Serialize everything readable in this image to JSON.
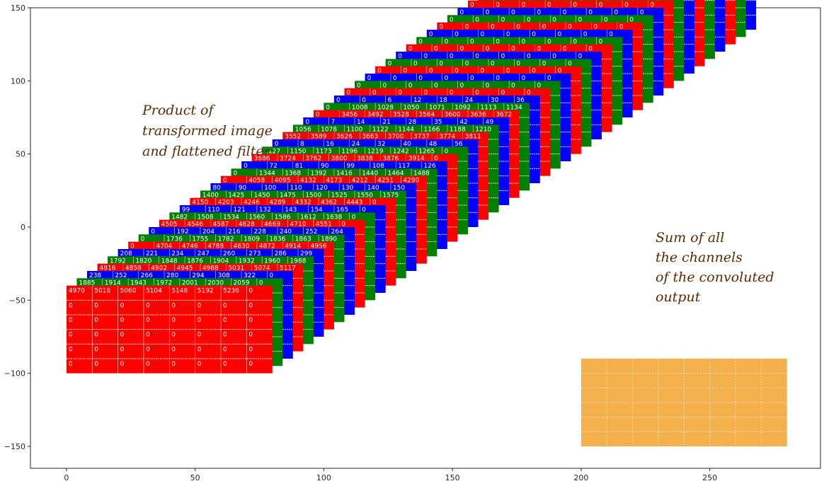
{
  "chart_data": {
    "type": "diagram",
    "xlim": [
      -14,
      293
    ],
    "ylim": [
      -165,
      150
    ],
    "xticks": [
      0,
      50,
      100,
      150,
      200,
      250
    ],
    "yticks": [
      -150,
      -100,
      -50,
      0,
      50,
      100,
      150
    ],
    "grid": false,
    "annotations": [
      {
        "name": "product-annotation",
        "lines": [
          "Product of",
          "transformed image",
          "and flattened filter"
        ]
      },
      {
        "name": "sum-annotation",
        "lines": [
          "Sum of all",
          "the channels",
          "of the convoluted",
          "output"
        ]
      }
    ],
    "stack": {
      "count": 48,
      "colors": [
        "#ff0000",
        "#008000",
        "#0000ff"
      ],
      "front_origin": [
        0,
        -100
      ],
      "step": [
        4,
        5
      ],
      "width": 80,
      "height": 60,
      "rows": 6,
      "cols": 8,
      "front_cells": [
        "0",
        "0",
        "0",
        "0",
        "0",
        "0",
        "0",
        "0"
      ],
      "top_row_values": [
        [
          "4970",
          "5016",
          "5060",
          "5104",
          "5148",
          "5192",
          "5236",
          "0"
        ],
        [
          "1885",
          "1914",
          "1943",
          "1972",
          "2001",
          "2030",
          "2059",
          "0"
        ],
        [
          "238",
          "252",
          "266",
          "280",
          "294",
          "308",
          "322",
          "0"
        ],
        [
          "4816",
          "4858",
          "4902",
          "4945",
          "4988",
          "5031",
          "5074",
          "5117"
        ],
        [
          "1792",
          "1820",
          "1848",
          "1876",
          "1904",
          "1932",
          "1960",
          "1988"
        ],
        [
          "208",
          "221",
          "234",
          "247",
          "260",
          "273",
          "286",
          "299"
        ],
        [
          "0",
          "4704",
          "4746",
          "4788",
          "4830",
          "4872",
          "4914",
          "4956"
        ],
        [
          "0",
          "1736",
          "1755",
          "1782",
          "1809",
          "1836",
          "1863",
          "1890"
        ],
        [
          "0",
          "192",
          "204",
          "216",
          "228",
          "240",
          "252",
          "264"
        ],
        [
          "4505",
          "4546",
          "4587",
          "4628",
          "4669",
          "4710",
          "4551",
          "0"
        ],
        [
          "1482",
          "1508",
          "1534",
          "1560",
          "1586",
          "1612",
          "1638",
          "0"
        ],
        [
          "99",
          "110",
          "121",
          "132",
          "143",
          "154",
          "165",
          "0"
        ],
        [
          "4150",
          "4203",
          "4246",
          "4289",
          "4332",
          "4362",
          "4443",
          "0"
        ],
        [
          "1400",
          "1425",
          "1450",
          "1475",
          "1500",
          "1525",
          "1550",
          "1575"
        ],
        [
          "80",
          "90",
          "100",
          "110",
          "120",
          "130",
          "140",
          "150"
        ],
        [
          "0",
          "4058",
          "4095",
          "4132",
          "4173",
          "4212",
          "4251",
          "4290"
        ],
        [
          "0",
          "1344",
          "1368",
          "1392",
          "1416",
          "1440",
          "1464",
          "1488"
        ],
        [
          "0",
          "72",
          "81",
          "90",
          "99",
          "108",
          "117",
          "126"
        ],
        [
          "3686",
          "3724",
          "3762",
          "3800",
          "3838",
          "3876",
          "3914",
          "0"
        ],
        [
          "1127",
          "1150",
          "1173",
          "1196",
          "1219",
          "1242",
          "1265",
          "0"
        ],
        [
          "0",
          "8",
          "16",
          "24",
          "32",
          "40",
          "48",
          "56"
        ],
        [
          "3552",
          "3589",
          "3626",
          "3663",
          "3700",
          "3737",
          "3774",
          "3811"
        ],
        [
          "1056",
          "1078",
          "1100",
          "1122",
          "1144",
          "1166",
          "1188",
          "1210"
        ],
        [
          "0",
          "7",
          "14",
          "21",
          "28",
          "35",
          "42",
          "49"
        ],
        [
          "0",
          "3456",
          "3492",
          "3528",
          "3564",
          "3600",
          "3636",
          "3672"
        ],
        [
          "0",
          "1008",
          "1028",
          "1050",
          "1071",
          "1092",
          "1113",
          "1134"
        ],
        [
          "0",
          "0",
          "6",
          "12",
          "18",
          "24",
          "30",
          "36"
        ],
        [
          "0",
          "0",
          "0",
          "0",
          "0",
          "0",
          "0",
          "0"
        ],
        [
          "0",
          "0",
          "0",
          "0",
          "0",
          "0",
          "0",
          "0"
        ],
        [
          "0",
          "0",
          "0",
          "0",
          "0",
          "0",
          "0",
          "0"
        ],
        [
          "0",
          "0",
          "0",
          "0",
          "0",
          "0",
          "0",
          "0"
        ],
        [
          "0",
          "0",
          "0",
          "0",
          "0",
          "0",
          "0",
          "0"
        ],
        [
          "0",
          "0",
          "0",
          "0",
          "0",
          "0",
          "0",
          "0"
        ],
        [
          "0",
          "0",
          "0",
          "0",
          "0",
          "0",
          "0",
          "0"
        ],
        [
          "0",
          "0",
          "0",
          "0",
          "0",
          "0",
          "0",
          "0"
        ],
        [
          "0",
          "0",
          "0",
          "0",
          "0",
          "0",
          "0",
          "0"
        ],
        [
          "0",
          "0",
          "0",
          "0",
          "0",
          "0",
          "0",
          "0"
        ],
        [
          "0",
          "0",
          "0",
          "0",
          "0",
          "0",
          "0",
          "0"
        ],
        [
          "0",
          "0",
          "0",
          "0",
          "0",
          "0",
          "0",
          "0"
        ],
        [
          "0",
          "0",
          "0",
          "0",
          "0",
          "0",
          "0",
          "0"
        ],
        [
          "0",
          "0",
          "0",
          "0",
          "0",
          "0",
          "0",
          "0"
        ],
        [
          "0",
          "0",
          "0",
          "0",
          "0",
          "0",
          "0",
          "0"
        ],
        [
          "0",
          "0",
          "0",
          "0",
          "0",
          "0",
          "0",
          "0"
        ],
        [
          "0",
          "0",
          "0",
          "0",
          "0",
          "0",
          "0",
          "0"
        ],
        [
          "0",
          "0",
          "0",
          "0",
          "0",
          "0",
          "0",
          "0"
        ],
        [
          "0",
          "0",
          "0",
          "0",
          "0",
          "0",
          "0",
          "0"
        ],
        [
          "0",
          "0",
          "0",
          "0",
          "0",
          "0",
          "0",
          "0"
        ],
        [
          "0",
          "0",
          "0",
          "0",
          "0",
          "0",
          "0",
          "0"
        ]
      ]
    },
    "sum_grid": {
      "origin": [
        200,
        -150
      ],
      "width": 80,
      "height": 60,
      "rows": 6,
      "cols": 8,
      "color": "#f4b04a"
    }
  }
}
